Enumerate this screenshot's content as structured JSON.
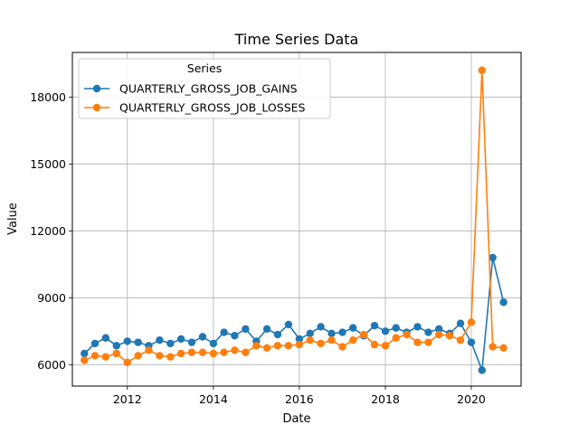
{
  "chart_data": {
    "type": "line",
    "title": "Time Series Data",
    "xlabel": "Date",
    "ylabel": "Value",
    "xlim": [
      "2010-09-21",
      "2021-02-27"
    ],
    "ylim": [
      5040,
      20000
    ],
    "x_ticks": [
      "2012-01-01",
      "2014-01-01",
      "2016-01-01",
      "2018-01-01",
      "2020-01-01"
    ],
    "x_tick_labels": [
      "2012",
      "2014",
      "2016",
      "2018",
      "2020"
    ],
    "y_ticks": [
      6000,
      9000,
      12000,
      15000,
      18000
    ],
    "y_tick_labels": [
      "6000",
      "9000",
      "12000",
      "15000",
      "18000"
    ],
    "grid": true,
    "legend": {
      "title": "Series",
      "placement": "top-left"
    },
    "x": [
      "2011-01-01",
      "2011-04-01",
      "2011-07-01",
      "2011-10-01",
      "2012-01-01",
      "2012-04-01",
      "2012-07-01",
      "2012-10-01",
      "2013-01-01",
      "2013-04-01",
      "2013-07-01",
      "2013-10-01",
      "2014-01-01",
      "2014-04-01",
      "2014-07-01",
      "2014-10-01",
      "2015-01-01",
      "2015-04-01",
      "2015-07-01",
      "2015-10-01",
      "2016-01-01",
      "2016-04-01",
      "2016-07-01",
      "2016-10-01",
      "2017-01-01",
      "2017-04-01",
      "2017-07-01",
      "2017-10-01",
      "2018-01-01",
      "2018-04-01",
      "2018-07-01",
      "2018-10-01",
      "2019-01-01",
      "2019-04-01",
      "2019-07-01",
      "2019-10-01",
      "2020-01-01",
      "2020-04-01",
      "2020-07-01",
      "2020-10-01"
    ],
    "series": [
      {
        "name": "QUARTERLY_GROSS_JOB_GAINS",
        "color": "#1f77b4",
        "values": [
          6500,
          6950,
          7200,
          6850,
          7050,
          7000,
          6850,
          7100,
          6950,
          7150,
          7000,
          7250,
          6950,
          7450,
          7300,
          7600,
          7050,
          7600,
          7350,
          7800,
          7150,
          7400,
          7700,
          7400,
          7450,
          7650,
          7300,
          7750,
          7500,
          7650,
          7450,
          7700,
          7450,
          7600,
          7400,
          7850,
          7000,
          5750,
          10800,
          8800
        ]
      },
      {
        "name": "QUARTERLY_GROSS_JOB_LOSSES",
        "color": "#ff7f0e",
        "values": [
          6200,
          6400,
          6350,
          6500,
          6100,
          6400,
          6650,
          6400,
          6350,
          6500,
          6550,
          6550,
          6500,
          6550,
          6650,
          6550,
          6850,
          6750,
          6850,
          6850,
          6900,
          7100,
          6950,
          7100,
          6800,
          7100,
          7350,
          6900,
          6850,
          7200,
          7350,
          7000,
          7000,
          7350,
          7300,
          7100,
          7900,
          19200,
          6800,
          6750
        ]
      }
    ]
  }
}
